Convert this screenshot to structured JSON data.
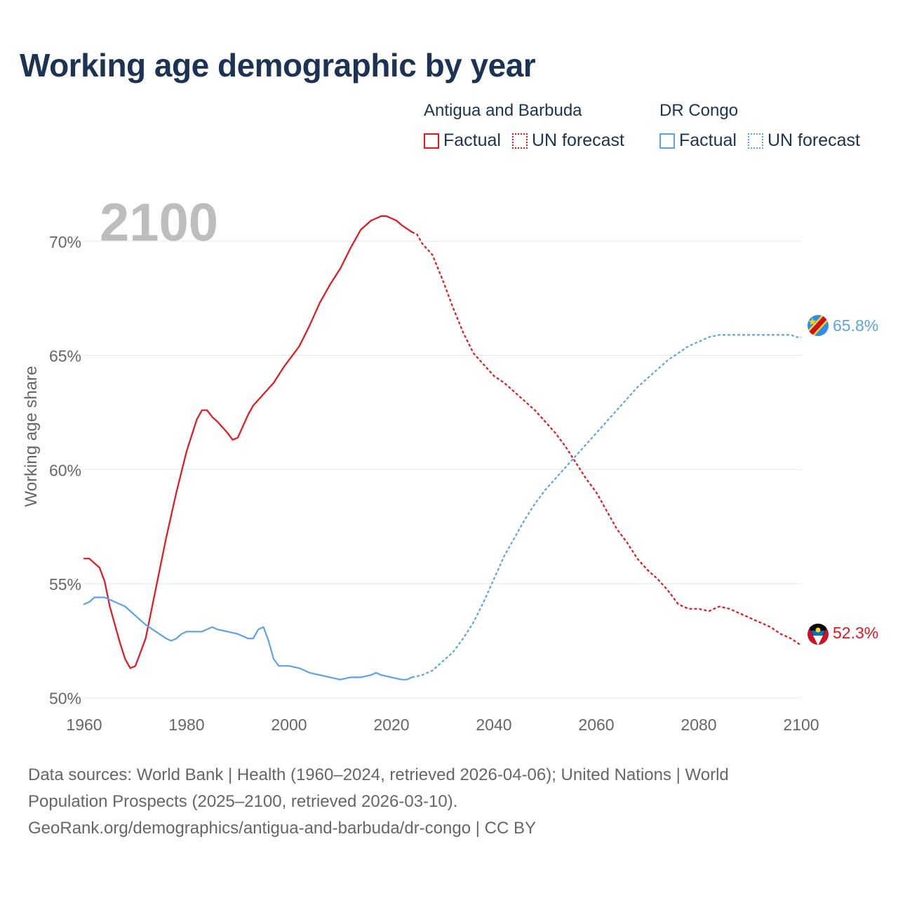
{
  "title": "Working age demographic by year",
  "legend": {
    "groups": [
      {
        "country": "Antigua and Barbuda",
        "color": "#e8141c",
        "items": [
          {
            "label": "Factual",
            "style": "solid"
          },
          {
            "label": "UN forecast",
            "style": "dotted"
          }
        ]
      },
      {
        "country": "DR Congo",
        "color": "#5ba3e6",
        "items": [
          {
            "label": "Factual",
            "style": "solid"
          },
          {
            "label": "UN forecast",
            "style": "dotted"
          }
        ]
      }
    ]
  },
  "chart_data": {
    "type": "line",
    "year_label": "2100",
    "ylabel": "Working age share",
    "xlim": [
      1960,
      2100
    ],
    "ylim": [
      49.5,
      71.5
    ],
    "x_ticks": [
      1960,
      1980,
      2000,
      2020,
      2040,
      2060,
      2080,
      2100
    ],
    "y_ticks": [
      50,
      55,
      60,
      65,
      70
    ],
    "y_tick_labels": [
      "50%",
      "55%",
      "60%",
      "65%",
      "70%"
    ],
    "series": [
      {
        "name": "Antigua and Barbuda",
        "color": "#e8141c",
        "end_label": "52.3%",
        "factual": [
          [
            1960,
            56.1
          ],
          [
            1961,
            56.1
          ],
          [
            1963,
            55.7
          ],
          [
            1964,
            55.1
          ],
          [
            1965,
            54.0
          ],
          [
            1966,
            53.2
          ],
          [
            1967,
            52.4
          ],
          [
            1968,
            51.7
          ],
          [
            1969,
            51.3
          ],
          [
            1970,
            51.4
          ],
          [
            1972,
            52.6
          ],
          [
            1974,
            54.8
          ],
          [
            1976,
            57.0
          ],
          [
            1978,
            59.0
          ],
          [
            1980,
            60.8
          ],
          [
            1982,
            62.2
          ],
          [
            1983,
            62.6
          ],
          [
            1984,
            62.6
          ],
          [
            1985,
            62.3
          ],
          [
            1986,
            62.1
          ],
          [
            1988,
            61.6
          ],
          [
            1989,
            61.3
          ],
          [
            1990,
            61.4
          ],
          [
            1991,
            61.9
          ],
          [
            1992,
            62.4
          ],
          [
            1993,
            62.8
          ],
          [
            1995,
            63.3
          ],
          [
            1997,
            63.8
          ],
          [
            1999,
            64.5
          ],
          [
            2001,
            65.1
          ],
          [
            2002,
            65.4
          ],
          [
            2004,
            66.3
          ],
          [
            2006,
            67.3
          ],
          [
            2008,
            68.1
          ],
          [
            2010,
            68.8
          ],
          [
            2012,
            69.7
          ],
          [
            2014,
            70.5
          ],
          [
            2016,
            70.9
          ],
          [
            2018,
            71.1
          ],
          [
            2019,
            71.1
          ],
          [
            2021,
            70.9
          ],
          [
            2022,
            70.7
          ],
          [
            2024,
            70.4
          ]
        ],
        "forecast": [
          [
            2024,
            70.4
          ],
          [
            2025,
            70.3
          ],
          [
            2026,
            69.9
          ],
          [
            2028,
            69.4
          ],
          [
            2030,
            68.3
          ],
          [
            2032,
            67.1
          ],
          [
            2034,
            66.0
          ],
          [
            2036,
            65.1
          ],
          [
            2038,
            64.6
          ],
          [
            2040,
            64.1
          ],
          [
            2042,
            63.8
          ],
          [
            2044,
            63.4
          ],
          [
            2046,
            63.0
          ],
          [
            2048,
            62.6
          ],
          [
            2050,
            62.1
          ],
          [
            2052,
            61.6
          ],
          [
            2054,
            61.0
          ],
          [
            2056,
            60.3
          ],
          [
            2058,
            59.6
          ],
          [
            2060,
            59.0
          ],
          [
            2062,
            58.2
          ],
          [
            2064,
            57.4
          ],
          [
            2066,
            56.8
          ],
          [
            2068,
            56.1
          ],
          [
            2070,
            55.6
          ],
          [
            2072,
            55.2
          ],
          [
            2074,
            54.7
          ],
          [
            2076,
            54.1
          ],
          [
            2078,
            53.9
          ],
          [
            2080,
            53.9
          ],
          [
            2082,
            53.8
          ],
          [
            2084,
            54.0
          ],
          [
            2086,
            53.9
          ],
          [
            2088,
            53.7
          ],
          [
            2090,
            53.5
          ],
          [
            2092,
            53.3
          ],
          [
            2094,
            53.1
          ],
          [
            2096,
            52.8
          ],
          [
            2098,
            52.6
          ],
          [
            2100,
            52.3
          ]
        ]
      },
      {
        "name": "DR Congo",
        "color": "#5ba3e6",
        "end_label": "65.8%",
        "factual": [
          [
            1960,
            54.1
          ],
          [
            1961,
            54.2
          ],
          [
            1962,
            54.4
          ],
          [
            1963,
            54.4
          ],
          [
            1964,
            54.4
          ],
          [
            1965,
            54.3
          ],
          [
            1966,
            54.2
          ],
          [
            1968,
            54.0
          ],
          [
            1970,
            53.6
          ],
          [
            1972,
            53.2
          ],
          [
            1974,
            52.9
          ],
          [
            1976,
            52.6
          ],
          [
            1977,
            52.5
          ],
          [
            1978,
            52.6
          ],
          [
            1979,
            52.8
          ],
          [
            1980,
            52.9
          ],
          [
            1982,
            52.9
          ],
          [
            1983,
            52.9
          ],
          [
            1985,
            53.1
          ],
          [
            1986,
            53.0
          ],
          [
            1988,
            52.9
          ],
          [
            1990,
            52.8
          ],
          [
            1992,
            52.6
          ],
          [
            1993,
            52.6
          ],
          [
            1994,
            53.0
          ],
          [
            1995,
            53.1
          ],
          [
            1996,
            52.5
          ],
          [
            1997,
            51.7
          ],
          [
            1998,
            51.4
          ],
          [
            2000,
            51.4
          ],
          [
            2002,
            51.3
          ],
          [
            2004,
            51.1
          ],
          [
            2006,
            51.0
          ],
          [
            2008,
            50.9
          ],
          [
            2010,
            50.8
          ],
          [
            2012,
            50.9
          ],
          [
            2014,
            50.9
          ],
          [
            2016,
            51.0
          ],
          [
            2017,
            51.1
          ],
          [
            2018,
            51.0
          ],
          [
            2020,
            50.9
          ],
          [
            2022,
            50.8
          ],
          [
            2023,
            50.8
          ],
          [
            2024,
            50.9
          ]
        ],
        "forecast": [
          [
            2024,
            50.9
          ],
          [
            2026,
            51.0
          ],
          [
            2028,
            51.2
          ],
          [
            2030,
            51.6
          ],
          [
            2032,
            52.0
          ],
          [
            2034,
            52.6
          ],
          [
            2036,
            53.3
          ],
          [
            2038,
            54.2
          ],
          [
            2040,
            55.2
          ],
          [
            2042,
            56.2
          ],
          [
            2044,
            57.0
          ],
          [
            2046,
            57.8
          ],
          [
            2048,
            58.5
          ],
          [
            2050,
            59.1
          ],
          [
            2052,
            59.6
          ],
          [
            2054,
            60.1
          ],
          [
            2056,
            60.6
          ],
          [
            2058,
            61.1
          ],
          [
            2060,
            61.6
          ],
          [
            2062,
            62.1
          ],
          [
            2064,
            62.6
          ],
          [
            2066,
            63.1
          ],
          [
            2068,
            63.6
          ],
          [
            2070,
            64.0
          ],
          [
            2072,
            64.4
          ],
          [
            2074,
            64.8
          ],
          [
            2076,
            65.1
          ],
          [
            2078,
            65.4
          ],
          [
            2080,
            65.6
          ],
          [
            2082,
            65.8
          ],
          [
            2084,
            65.9
          ],
          [
            2086,
            65.9
          ],
          [
            2088,
            65.9
          ],
          [
            2090,
            65.9
          ],
          [
            2092,
            65.9
          ],
          [
            2094,
            65.9
          ],
          [
            2096,
            65.9
          ],
          [
            2098,
            65.9
          ],
          [
            2099,
            65.8
          ],
          [
            2100,
            65.8
          ]
        ]
      }
    ]
  },
  "source": {
    "line1": "Data sources: World Bank | Health (1960–2024, retrieved 2026-04-06); United Nations | World",
    "line2": "Population Prospects (2025–2100, retrieved 2026-03-10).",
    "line3": "GeoRank.org/demographics/antigua-and-barbuda/dr-congo | CC BY"
  }
}
